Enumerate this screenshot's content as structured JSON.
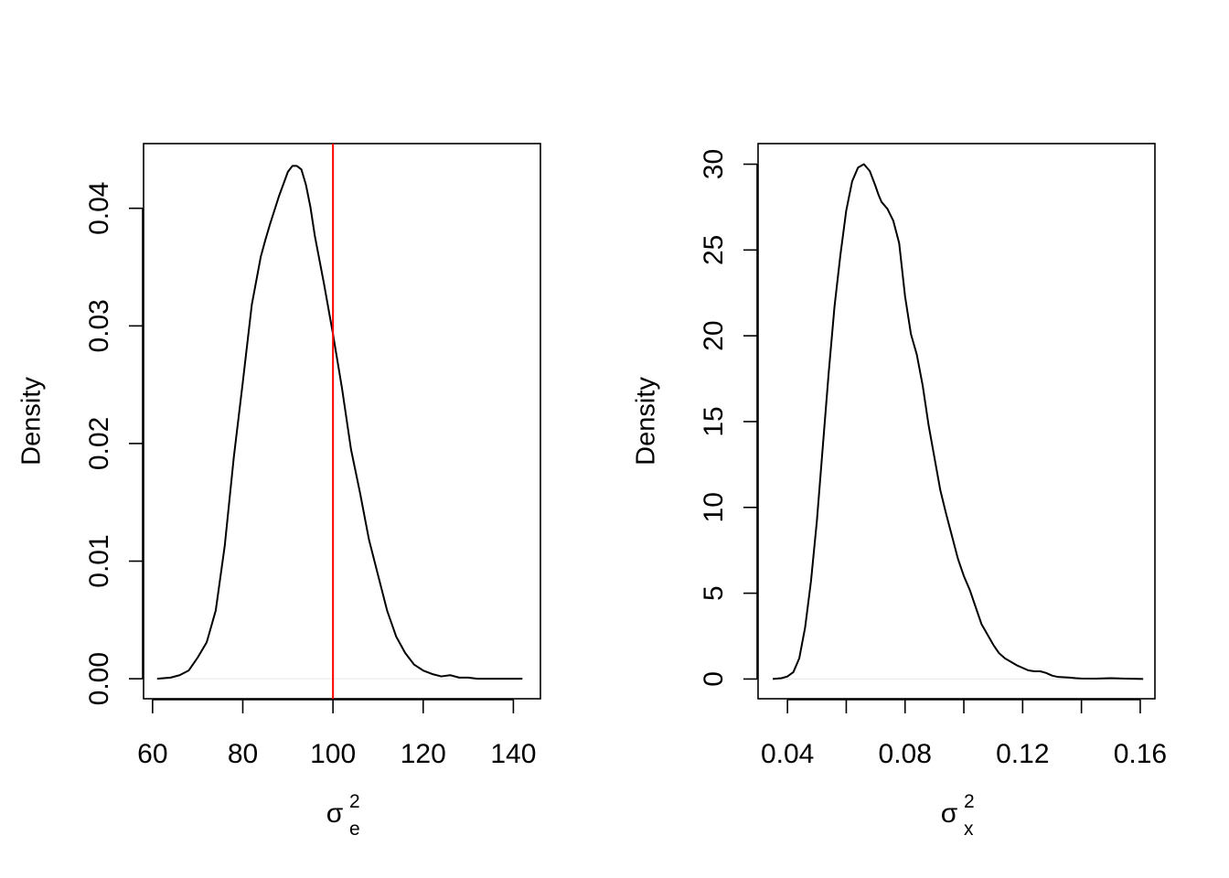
{
  "colors": {
    "curve": "#000000",
    "reference_line": "#ff0000",
    "zero_line": "#e6e6e6",
    "axis": "#000000"
  },
  "chart_data": [
    {
      "type": "line",
      "title": "",
      "ylabel": "Density",
      "xlabel": {
        "symbol": "σ",
        "superscript": "2",
        "subscript": "e"
      },
      "xlim": [
        58,
        146
      ],
      "ylim": [
        -0.0017,
        0.0455
      ],
      "x_ticks": [
        60,
        80,
        100,
        120,
        140
      ],
      "x_tick_labels": [
        "60",
        "80",
        "100",
        "120",
        "140"
      ],
      "y_ticks": [
        0.0,
        0.01,
        0.02,
        0.03,
        0.04
      ],
      "y_tick_labels": [
        "0.00",
        "0.01",
        "0.02",
        "0.03",
        "0.04"
      ],
      "grid": false,
      "zero_line": true,
      "vline": {
        "x": 100
      },
      "series": [
        {
          "x": [
            61,
            64,
            66,
            68,
            70,
            72,
            74,
            76,
            78,
            80,
            82,
            84,
            85,
            86,
            88,
            90,
            91,
            92,
            93,
            94,
            95,
            96,
            98,
            100,
            102,
            104,
            106,
            108,
            110,
            112,
            114,
            116,
            118,
            120,
            122,
            124,
            126,
            128,
            130,
            132,
            134,
            136,
            138,
            140,
            142
          ],
          "values": [
            0.0,
            0.0001,
            0.0003,
            0.0007,
            0.0018,
            0.0031,
            0.0058,
            0.0113,
            0.0188,
            0.0252,
            0.0318,
            0.0359,
            0.0373,
            0.0386,
            0.041,
            0.0431,
            0.0436,
            0.0436,
            0.0433,
            0.042,
            0.0401,
            0.0376,
            0.0336,
            0.0293,
            0.0247,
            0.0195,
            0.0158,
            0.0118,
            0.0088,
            0.0058,
            0.0036,
            0.0022,
            0.0012,
            0.0007,
            0.0004,
            0.0002,
            0.0003,
            0.0001,
            0.0001,
            0.0,
            0.0,
            0.0,
            0.0,
            0.0,
            0.0
          ]
        }
      ]
    },
    {
      "type": "line",
      "title": "",
      "ylabel": "Density",
      "xlabel": {
        "symbol": "σ",
        "superscript": "2",
        "subscript": "x"
      },
      "xlim": [
        0.03,
        0.165
      ],
      "ylim": [
        -1.15,
        31.2
      ],
      "x_ticks": [
        0.04,
        0.06,
        0.08,
        0.1,
        0.12,
        0.14,
        0.16
      ],
      "x_tick_labels": [
        "0.04",
        "",
        "0.08",
        "",
        "0.12",
        "",
        "0.16"
      ],
      "y_ticks": [
        0,
        5,
        10,
        15,
        20,
        25,
        30
      ],
      "y_tick_labels": [
        "0",
        "5",
        "10",
        "15",
        "20",
        "25",
        "30"
      ],
      "grid": false,
      "zero_line": true,
      "series": [
        {
          "x": [
            0.035,
            0.038,
            0.04,
            0.042,
            0.044,
            0.046,
            0.048,
            0.05,
            0.052,
            0.054,
            0.056,
            0.058,
            0.06,
            0.062,
            0.064,
            0.066,
            0.068,
            0.07,
            0.071,
            0.072,
            0.074,
            0.076,
            0.078,
            0.08,
            0.082,
            0.084,
            0.086,
            0.088,
            0.09,
            0.092,
            0.094,
            0.096,
            0.098,
            0.1,
            0.102,
            0.104,
            0.106,
            0.108,
            0.11,
            0.112,
            0.114,
            0.116,
            0.118,
            0.12,
            0.122,
            0.124,
            0.126,
            0.128,
            0.13,
            0.132,
            0.134,
            0.136,
            0.138,
            0.14,
            0.145,
            0.15,
            0.155,
            0.161
          ],
          "values": [
            0.0,
            0.05,
            0.15,
            0.4,
            1.2,
            3.0,
            5.7,
            9.2,
            13.5,
            17.8,
            21.7,
            24.7,
            27.3,
            29.0,
            29.8,
            30.0,
            29.6,
            28.7,
            28.2,
            27.8,
            27.4,
            26.7,
            25.4,
            22.3,
            20.1,
            18.9,
            17.1,
            14.8,
            12.9,
            11.0,
            9.6,
            8.3,
            7.0,
            6.0,
            5.2,
            4.2,
            3.2,
            2.6,
            2.0,
            1.5,
            1.2,
            1.0,
            0.8,
            0.65,
            0.5,
            0.45,
            0.45,
            0.35,
            0.2,
            0.12,
            0.1,
            0.08,
            0.05,
            0.03,
            0.02,
            0.05,
            0.02,
            0.0
          ]
        }
      ]
    }
  ]
}
